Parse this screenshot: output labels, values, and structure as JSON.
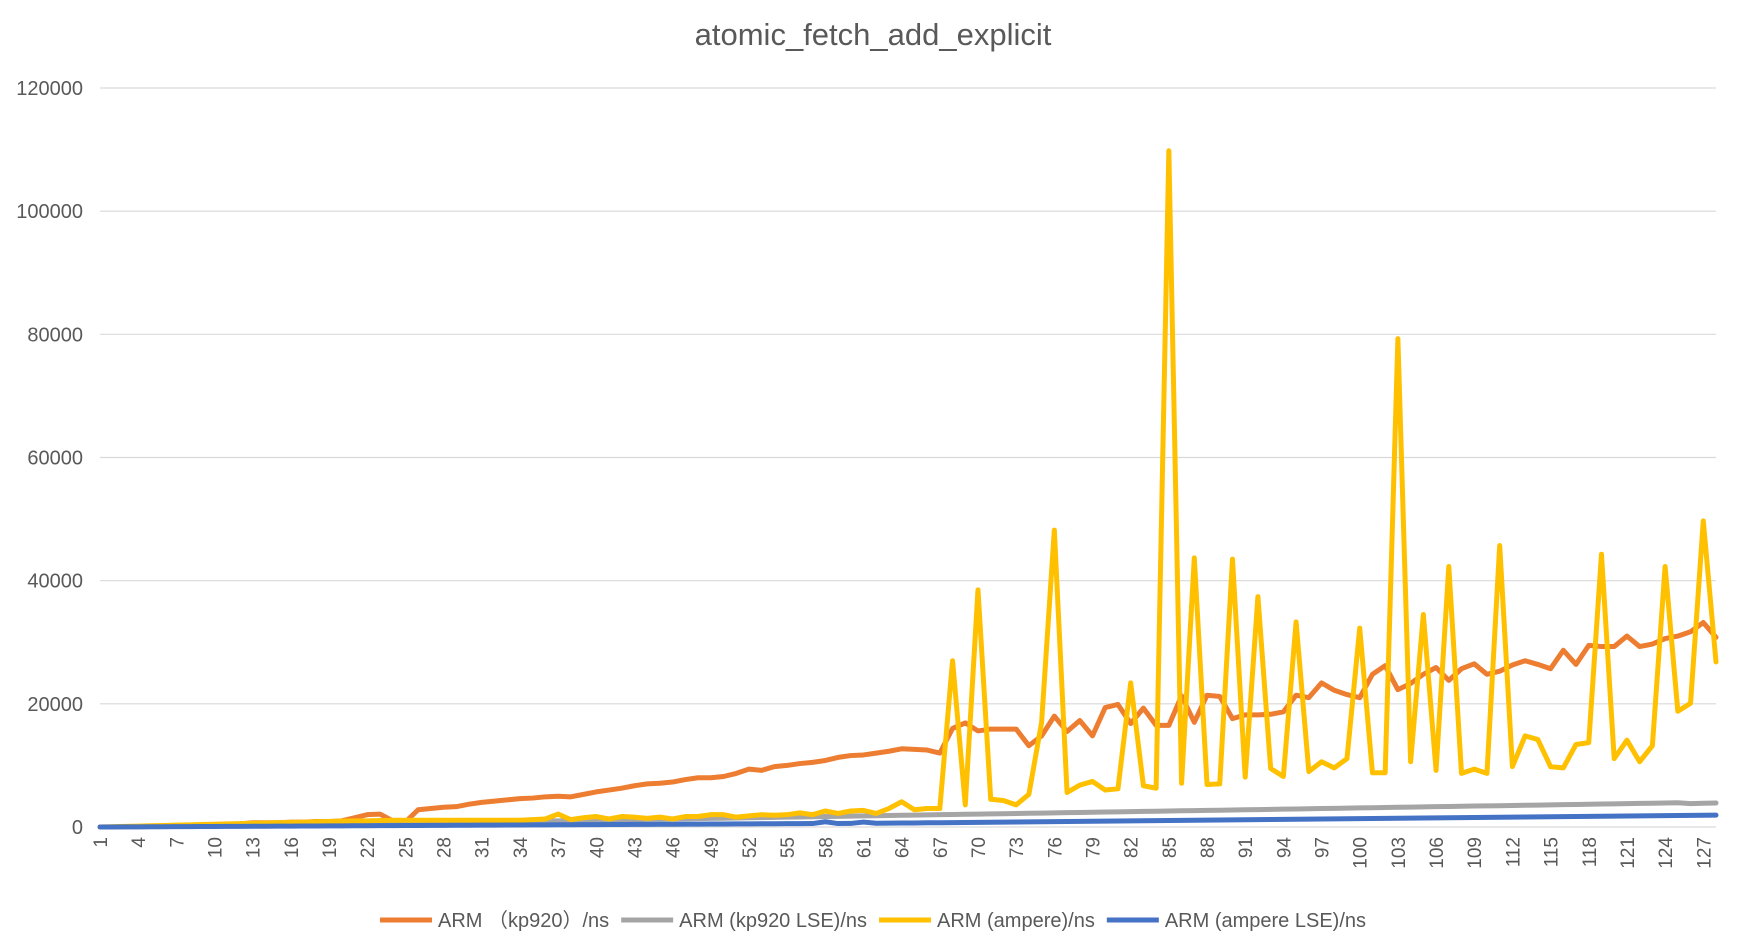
{
  "chart_data": {
    "type": "line",
    "title": "atomic_fetch_add_explicit",
    "xlabel": "",
    "ylabel": "",
    "ylim": [
      0,
      120000
    ],
    "yticks": [
      0,
      20000,
      40000,
      60000,
      80000,
      100000,
      120000
    ],
    "x": [
      1,
      2,
      3,
      4,
      5,
      6,
      7,
      8,
      9,
      10,
      11,
      12,
      13,
      14,
      15,
      16,
      17,
      18,
      19,
      20,
      21,
      22,
      23,
      24,
      25,
      26,
      27,
      28,
      29,
      30,
      31,
      32,
      33,
      34,
      35,
      36,
      37,
      38,
      39,
      40,
      41,
      42,
      43,
      44,
      45,
      46,
      47,
      48,
      49,
      50,
      51,
      52,
      53,
      54,
      55,
      56,
      57,
      58,
      59,
      60,
      61,
      62,
      63,
      64,
      65,
      66,
      67,
      68,
      69,
      70,
      71,
      72,
      73,
      74,
      75,
      76,
      77,
      78,
      79,
      80,
      81,
      82,
      83,
      84,
      85,
      86,
      87,
      88,
      89,
      90,
      91,
      92,
      93,
      94,
      95,
      96,
      97,
      98,
      99,
      100,
      101,
      102,
      103,
      104,
      105,
      106,
      107,
      108,
      109,
      110,
      111,
      112,
      113,
      114,
      115,
      116,
      117,
      118,
      119,
      120,
      121,
      122,
      123,
      124,
      125,
      126,
      127,
      128
    ],
    "xticks": [
      1,
      4,
      7,
      10,
      13,
      16,
      19,
      22,
      25,
      28,
      31,
      34,
      37,
      40,
      43,
      46,
      49,
      52,
      55,
      58,
      61,
      64,
      67,
      70,
      73,
      76,
      79,
      82,
      85,
      88,
      91,
      94,
      97,
      100,
      103,
      106,
      109,
      112,
      115,
      118,
      121,
      124,
      127
    ],
    "grid": true,
    "legend_position": "bottom",
    "series": [
      {
        "name": "ARM （kp920）/ns",
        "color": "#ED7D31",
        "values": [
          0,
          20,
          40,
          80,
          100,
          150,
          200,
          250,
          300,
          350,
          400,
          500,
          700,
          700,
          700,
          800,
          800,
          900,
          900,
          1000,
          1500,
          2000,
          2100,
          1000,
          800,
          2800,
          3000,
          3200,
          3300,
          3700,
          4000,
          4200,
          4400,
          4600,
          4700,
          4900,
          5000,
          4900,
          5300,
          5700,
          6000,
          6300,
          6700,
          7000,
          7100,
          7300,
          7700,
          8000,
          8000,
          8200,
          8700,
          9400,
          9200,
          9800,
          10000,
          10300,
          10500,
          10800,
          11300,
          11600,
          11700,
          12000,
          12300,
          12700,
          12600,
          12500,
          12000,
          16000,
          16900,
          15600,
          15900,
          15900,
          15900,
          13200,
          14800,
          18000,
          15500,
          17300,
          14800,
          19400,
          19900,
          16800,
          19300,
          16500,
          16500,
          21300,
          17000,
          21400,
          21200,
          17600,
          18200,
          18200,
          18300,
          18700,
          21400,
          21000,
          23400,
          22200,
          21500,
          21000,
          24800,
          26200,
          22300,
          23300,
          24800,
          25900,
          23800,
          25700,
          26500,
          24800,
          25300,
          26300,
          27000,
          26400,
          25700,
          28700,
          26400,
          29500,
          29300,
          29300,
          31000,
          29300,
          29700,
          30600,
          31000,
          31700,
          33200,
          30800
        ]
      },
      {
        "name": "ARM (kp920 LSE)/ns",
        "color": "#A5A5A5",
        "values": [
          0,
          10,
          20,
          40,
          60,
          80,
          100,
          120,
          150,
          180,
          200,
          230,
          260,
          280,
          300,
          320,
          350,
          380,
          400,
          430,
          460,
          500,
          530,
          560,
          600,
          630,
          660,
          700,
          730,
          760,
          800,
          830,
          860,
          900,
          930,
          960,
          1000,
          1030,
          1060,
          1100,
          1130,
          1160,
          1200,
          1230,
          1260,
          1300,
          1330,
          1360,
          1400,
          1430,
          1460,
          1500,
          1530,
          1560,
          1600,
          1630,
          1660,
          1700,
          1730,
          1760,
          1800,
          1830,
          1860,
          1900,
          1930,
          1960,
          2000,
          2030,
          2060,
          2100,
          2130,
          2160,
          2200,
          2230,
          2260,
          2300,
          2330,
          2360,
          2400,
          2430,
          2460,
          2500,
          2530,
          2560,
          2600,
          2630,
          2660,
          2700,
          2730,
          2760,
          2800,
          2830,
          2860,
          2900,
          2930,
          2960,
          3000,
          3030,
          3060,
          3100,
          3130,
          3160,
          3200,
          3230,
          3260,
          3300,
          3330,
          3360,
          3400,
          3430,
          3460,
          3500,
          3530,
          3560,
          3600,
          3630,
          3660,
          3700,
          3730,
          3760,
          3800,
          3830,
          3860,
          3900,
          3930,
          3800,
          3850,
          3900
        ]
      },
      {
        "name": "ARM (ampere)/ns",
        "color": "#FFC000",
        "values": [
          0,
          50,
          100,
          150,
          200,
          250,
          300,
          350,
          400,
          450,
          500,
          550,
          600,
          650,
          700,
          750,
          800,
          850,
          900,
          950,
          1000,
          1000,
          1050,
          1100,
          1100,
          1100,
          1100,
          1100,
          1100,
          1100,
          1100,
          1100,
          1100,
          1100,
          1200,
          1300,
          2100,
          1200,
          1500,
          1700,
          1300,
          1700,
          1600,
          1400,
          1600,
          1300,
          1700,
          1700,
          2000,
          2000,
          1600,
          1800,
          2000,
          1900,
          2000,
          2300,
          2000,
          2600,
          2200,
          2600,
          2700,
          2200,
          3000,
          4100,
          2800,
          3000,
          3000,
          27000,
          3600,
          38500,
          4500,
          4300,
          3600,
          5300,
          17000,
          48200,
          5600,
          6800,
          7400,
          6000,
          6200,
          23400,
          6700,
          6300,
          109800,
          7100,
          43700,
          6900,
          7000,
          43500,
          8100,
          37400,
          9500,
          8200,
          33300,
          9000,
          10600,
          9600,
          11100,
          32300,
          8800,
          8800,
          79300,
          10600,
          34500,
          9200,
          42300,
          8700,
          9400,
          8700,
          45700,
          9800,
          14800,
          14200,
          9800,
          9600,
          13400,
          13700,
          44300,
          11100,
          14100,
          10600,
          13200,
          42300,
          18800,
          20100,
          49700,
          26800
        ]
      },
      {
        "name": "ARM (ampere LSE)/ns",
        "color": "#4472C4",
        "values": [
          0,
          10,
          20,
          30,
          40,
          50,
          60,
          70,
          80,
          90,
          100,
          110,
          120,
          130,
          140,
          150,
          160,
          170,
          180,
          190,
          200,
          210,
          220,
          230,
          240,
          250,
          260,
          270,
          280,
          290,
          300,
          310,
          320,
          330,
          340,
          350,
          360,
          370,
          380,
          390,
          400,
          410,
          420,
          430,
          440,
          450,
          460,
          470,
          480,
          490,
          500,
          510,
          520,
          530,
          540,
          550,
          560,
          850,
          560,
          580,
          800,
          600,
          620,
          640,
          660,
          680,
          700,
          720,
          740,
          760,
          780,
          800,
          820,
          840,
          860,
          880,
          900,
          920,
          940,
          960,
          980,
          1000,
          1020,
          1040,
          1060,
          1080,
          1100,
          1120,
          1140,
          1160,
          1180,
          1200,
          1220,
          1240,
          1260,
          1280,
          1300,
          1320,
          1340,
          1360,
          1380,
          1400,
          1420,
          1440,
          1460,
          1480,
          1500,
          1520,
          1540,
          1560,
          1580,
          1600,
          1620,
          1640,
          1660,
          1680,
          1700,
          1720,
          1740,
          1760,
          1780,
          1800,
          1820,
          1840,
          1860,
          1880,
          1900,
          1920
        ]
      }
    ]
  }
}
